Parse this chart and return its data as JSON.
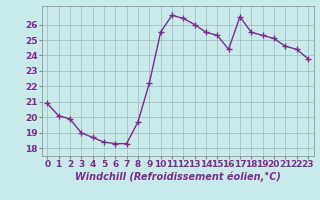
{
  "x": [
    0,
    1,
    2,
    3,
    4,
    5,
    6,
    7,
    8,
    9,
    10,
    11,
    12,
    13,
    14,
    15,
    16,
    17,
    18,
    19,
    20,
    21,
    22,
    23
  ],
  "y": [
    20.9,
    20.1,
    19.9,
    19.0,
    18.7,
    18.4,
    18.3,
    18.3,
    19.7,
    22.2,
    25.5,
    26.6,
    26.4,
    26.0,
    25.5,
    25.3,
    24.4,
    26.5,
    25.5,
    25.3,
    25.1,
    24.6,
    24.4,
    23.8
  ],
  "line_color": "#7b2d8b",
  "marker": "+",
  "marker_size": 4,
  "marker_linewidth": 1.0,
  "bg_color": "#c8eaea",
  "plot_bg_color": "#c8eaea",
  "grid_color": "#a0b8b8",
  "xlabel": "Windchill (Refroidissement éolien,°C)",
  "ylim": [
    17.5,
    27.2
  ],
  "xlim": [
    -0.5,
    23.5
  ],
  "yticks": [
    18,
    19,
    20,
    21,
    22,
    23,
    24,
    25,
    26
  ],
  "xticks": [
    0,
    1,
    2,
    3,
    4,
    5,
    6,
    7,
    8,
    9,
    10,
    11,
    12,
    13,
    14,
    15,
    16,
    17,
    18,
    19,
    20,
    21,
    22,
    23
  ],
  "xlabel_fontsize": 7,
  "tick_fontsize": 6.5,
  "linewidth": 1.0
}
